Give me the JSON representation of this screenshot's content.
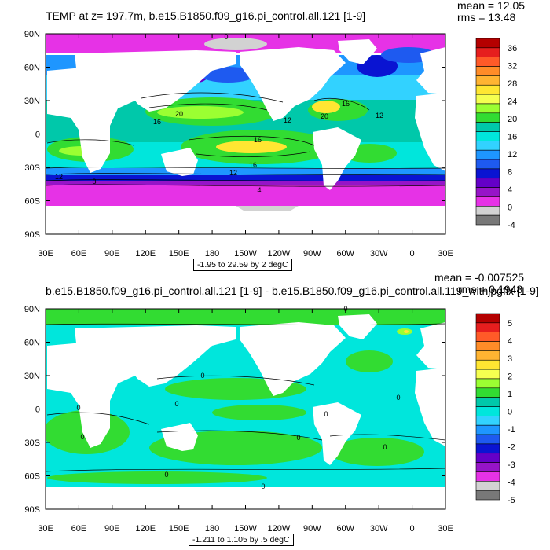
{
  "panels": [
    {
      "title": "TEMP at z= 197.7m, b.e15.B1850.f09_g16.pi_control.all.121 [1-9]",
      "mean_text": "mean = 12.05",
      "rms_text": "rms = 13.48",
      "range_text": "-1.95 to 29.59 by 2 degC",
      "lat_labels": [
        "90N",
        "60N",
        "30N",
        "0",
        "30S",
        "60S",
        "90S"
      ],
      "lon_labels": [
        "30E",
        "60E",
        "90E",
        "120E",
        "150E",
        "180",
        "150W",
        "120W",
        "90W",
        "60W",
        "30W",
        "0",
        "30E"
      ],
      "colorbar": {
        "labels": [
          "36",
          "32",
          "28",
          "24",
          "20",
          "16",
          "12",
          "8",
          "4",
          "0",
          "-4"
        ],
        "colors": [
          "#b40000",
          "#e61e1e",
          "#ff5a28",
          "#ff8c28",
          "#ffb432",
          "#ffe632",
          "#f5ff50",
          "#9bff32",
          "#32dc32",
          "#00c8aa",
          "#00e6dc",
          "#32d2ff",
          "#1e96ff",
          "#1e5af0",
          "#0a14d2",
          "#6400c8",
          "#9614c8",
          "#e632e6",
          "#d2d2d2",
          "#787878"
        ]
      },
      "contour_labels": [
        "0",
        "16",
        "20",
        "16",
        "12",
        "20",
        "12",
        "16",
        "12",
        "16",
        "12",
        "8",
        "4"
      ]
    },
    {
      "title": "b.e15.B1850.f09_g16.pi_control.all.121 [1-9] - b.e15.B1850.f09_g16.pi_control.all.119_withjpgfix [1-9]",
      "mean_text": "mean = -0.007525",
      "rms_text": "rms = 0.1948",
      "range_text": "-1.211 to 1.105 by .5 degC",
      "lat_labels": [
        "90N",
        "60N",
        "30N",
        "0",
        "30S",
        "60S",
        "90S"
      ],
      "lon_labels": [
        "30E",
        "60E",
        "90E",
        "120E",
        "150E",
        "180",
        "150W",
        "120W",
        "90W",
        "60W",
        "30W",
        "0",
        "30E"
      ],
      "colorbar": {
        "labels": [
          "5",
          "4",
          "3",
          "2",
          "1",
          "0",
          "-1",
          "-2",
          "-3",
          "-4",
          "-5"
        ],
        "colors": [
          "#b40000",
          "#e61e1e",
          "#ff5a28",
          "#ff8c28",
          "#ffb432",
          "#ffe632",
          "#f5ff50",
          "#9bff32",
          "#32dc32",
          "#00c8aa",
          "#00e6dc",
          "#32d2ff",
          "#1e96ff",
          "#1e5af0",
          "#0a14d2",
          "#6400c8",
          "#9614c8",
          "#e632e6",
          "#d2d2d2",
          "#787878"
        ]
      },
      "contour_labels": [
        "0",
        "0",
        "0",
        "0",
        "0",
        "0",
        "0",
        "0",
        "0",
        "0",
        "0"
      ]
    }
  ]
}
